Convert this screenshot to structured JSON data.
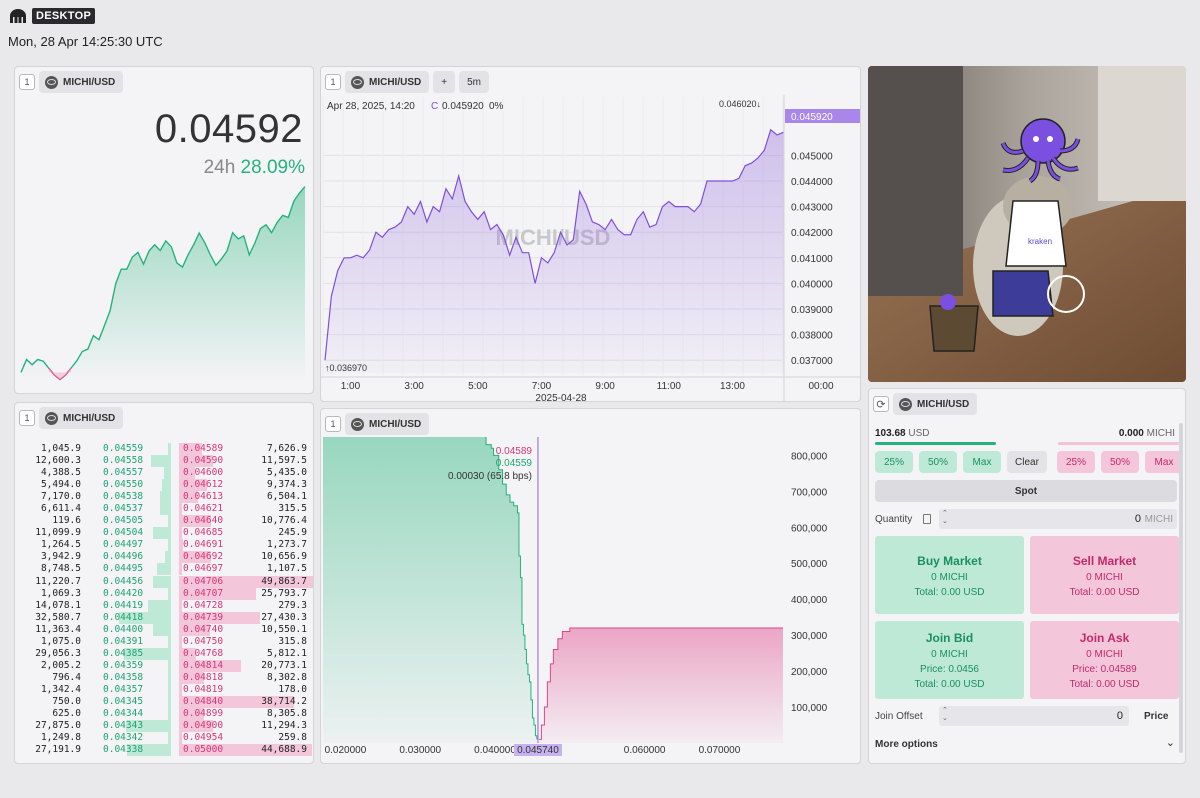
{
  "app": {
    "label": "DESKTOP",
    "clock": "Mon, 28 Apr 14:25:30 UTC"
  },
  "ticker": {
    "num": "1",
    "symbol": "MICHI/USD",
    "price": "0.04592",
    "change_label": "24h",
    "change_value": "28.09%",
    "spark": [
      0.03636,
      0.0368,
      0.03662,
      0.0368,
      0.03674,
      0.0365,
      0.03627,
      0.03612,
      0.03627,
      0.03651,
      0.03675,
      0.03707,
      0.03715,
      0.03761,
      0.03747,
      0.03796,
      0.03846,
      0.03937,
      0.03987,
      0.03987,
      0.04028,
      0.04044,
      0.04004,
      0.04049,
      0.0407,
      0.0405,
      0.04083,
      0.04063,
      0.04008,
      0.03994,
      0.04036,
      0.0407,
      0.0411,
      0.04077,
      0.04036,
      0.04,
      0.04022,
      0.04049,
      0.04111,
      0.0409,
      0.041,
      0.04036,
      0.04076,
      0.04125,
      0.04138,
      0.04111,
      0.04146,
      0.0417,
      0.04163,
      0.04218,
      0.04246,
      0.04268
    ]
  },
  "chart": {
    "num": "1",
    "symbol": "MICHI/USD",
    "add": "+",
    "interval": "5m",
    "date_label": "Apr 28, 2025, 14:20",
    "c_label": "C",
    "c_value": "0.045920",
    "c_pct": "0%",
    "high_label": "0.046020↓",
    "low_label": "↑0.036970",
    "watermark": "MICHI/USD",
    "last_tag": "0.045920",
    "date_under": "2025-04-28"
  },
  "chart_data": [
    {
      "type": "area",
      "title": "",
      "ylim": [
        0.0365,
        0.0465
      ],
      "yticks": [
        "0.037000",
        "0.038000",
        "0.039000",
        "0.040000",
        "0.041000",
        "0.042000",
        "0.043000",
        "0.044000",
        "0.045000"
      ],
      "xticks": [
        "1:00",
        "3:00",
        "5:00",
        "7:00",
        "9:00",
        "11:00",
        "13:00",
        "00:00"
      ],
      "x_hours": [
        0.0,
        0.2,
        0.4,
        0.6,
        0.8,
        1.0,
        1.2,
        1.4,
        1.6,
        1.8,
        2.0,
        2.2,
        2.4,
        2.6,
        2.8,
        3.0,
        3.2,
        3.4,
        3.6,
        3.8,
        4.0,
        4.2,
        4.4,
        4.6,
        4.8,
        5.0,
        5.2,
        5.4,
        5.6,
        5.8,
        6.0,
        6.2,
        6.4,
        6.6,
        6.8,
        7.0,
        7.2,
        7.4,
        7.6,
        7.8,
        8.0,
        8.2,
        8.4,
        8.6,
        8.8,
        9.0,
        9.2,
        9.4,
        9.6,
        9.8,
        10.0,
        10.2,
        10.4,
        10.6,
        10.8,
        11.0,
        11.2,
        11.4,
        11.6,
        11.8,
        12.0,
        12.2,
        12.4,
        12.6,
        12.8,
        13.0,
        13.2,
        13.4,
        13.6,
        13.8,
        14.0,
        14.2,
        14.4
      ],
      "values": [
        0.037,
        0.0395,
        0.0405,
        0.041,
        0.041,
        0.0411,
        0.041,
        0.0413,
        0.042,
        0.0418,
        0.0421,
        0.0422,
        0.0424,
        0.043,
        0.0427,
        0.0432,
        0.0424,
        0.043,
        0.0428,
        0.0437,
        0.0433,
        0.0442,
        0.0432,
        0.0428,
        0.0425,
        0.0428,
        0.0421,
        0.0423,
        0.0419,
        0.0411,
        0.0418,
        0.0412,
        0.0412,
        0.04,
        0.041,
        0.0408,
        0.0412,
        0.042,
        0.0415,
        0.0417,
        0.0436,
        0.0431,
        0.0424,
        0.0423,
        0.0421,
        0.0425,
        0.0421,
        0.0419,
        0.0419,
        0.0425,
        0.0428,
        0.0422,
        0.0423,
        0.043,
        0.0432,
        0.043,
        0.043,
        0.043,
        0.0428,
        0.0431,
        0.044,
        0.044,
        0.044,
        0.044,
        0.044,
        0.0441,
        0.0446,
        0.0447,
        0.0449,
        0.0452,
        0.046,
        0.0458,
        0.0459
      ]
    },
    {
      "type": "area",
      "title": "depth",
      "xlim": [
        0.017,
        0.0785
      ],
      "ylim": [
        0,
        840000
      ],
      "yticks": [
        "100,000",
        "200,000",
        "300,000",
        "400,000",
        "500,000",
        "600,000",
        "700,000",
        "800,000"
      ],
      "xticks": [
        "0.020000",
        "0.030000",
        "0.040000",
        "0.060000",
        "0.070000"
      ],
      "mid": "0.045740",
      "bids": [
        [
          0.017,
          860000
        ],
        [
          0.0385,
          860000
        ],
        [
          0.0388,
          830000
        ],
        [
          0.0395,
          820000
        ],
        [
          0.0398,
          800000
        ],
        [
          0.0405,
          760000
        ],
        [
          0.041,
          720000
        ],
        [
          0.0415,
          690000
        ],
        [
          0.042,
          670000
        ],
        [
          0.0425,
          660000
        ],
        [
          0.043,
          640000
        ],
        [
          0.0432,
          520000
        ],
        [
          0.0434,
          460000
        ],
        [
          0.0436,
          330000
        ],
        [
          0.0438,
          300000
        ],
        [
          0.044,
          260000
        ],
        [
          0.0442,
          220000
        ],
        [
          0.0444,
          190000
        ],
        [
          0.0446,
          170000
        ],
        [
          0.0448,
          120000
        ],
        [
          0.045,
          70000
        ],
        [
          0.0452,
          50000
        ],
        [
          0.0454,
          20000
        ],
        [
          0.04559,
          10000
        ]
      ],
      "asks": [
        [
          0.04589,
          10000
        ],
        [
          0.0462,
          50000
        ],
        [
          0.0466,
          100000
        ],
        [
          0.047,
          170000
        ],
        [
          0.0474,
          220000
        ],
        [
          0.0478,
          260000
        ],
        [
          0.0484,
          290000
        ],
        [
          0.049,
          310000
        ],
        [
          0.05,
          320000
        ],
        [
          0.0785,
          320000
        ]
      ]
    }
  ],
  "depth": {
    "num": "1",
    "symbol": "MICHI/USD",
    "ask_label": "0.04589",
    "bid_label": "0.04559",
    "spread_label": "0.00030 (65.8 bps)"
  },
  "orderbook": {
    "num": "1",
    "symbol": "MICHI/USD",
    "rows": [
      [
        "1,045.9",
        "0.04559",
        "0.04589",
        "7,626.9"
      ],
      [
        "12,600.3",
        "0.04558",
        "0.04590",
        "11,597.5"
      ],
      [
        "4,388.5",
        "0.04557",
        "0.04600",
        "5,435.0"
      ],
      [
        "5,494.0",
        "0.04550",
        "0.04612",
        "9,374.3"
      ],
      [
        "7,170.0",
        "0.04538",
        "0.04613",
        "6,504.1"
      ],
      [
        "6,611.4",
        "0.04537",
        "0.04621",
        "315.5"
      ],
      [
        "119.6",
        "0.04505",
        "0.04640",
        "10,776.4"
      ],
      [
        "11,099.9",
        "0.04504",
        "0.04685",
        "245.9"
      ],
      [
        "1,264.5",
        "0.04497",
        "0.04691",
        "1,273.7"
      ],
      [
        "3,942.9",
        "0.04496",
        "0.04692",
        "10,656.9"
      ],
      [
        "8,748.5",
        "0.04495",
        "0.04697",
        "1,107.5"
      ],
      [
        "11,220.7",
        "0.04456",
        "0.04706",
        "49,863.7"
      ],
      [
        "1,069.3",
        "0.04420",
        "0.04707",
        "25,793.7"
      ],
      [
        "14,078.1",
        "0.04419",
        "0.04728",
        "279.3"
      ],
      [
        "32,580.7",
        "0.04418",
        "0.04739",
        "27,430.3"
      ],
      [
        "11,363.4",
        "0.04400",
        "0.04740",
        "10,550.1"
      ],
      [
        "1,075.0",
        "0.04391",
        "0.04750",
        "315.8"
      ],
      [
        "29,056.3",
        "0.04385",
        "0.04768",
        "5,812.1"
      ],
      [
        "2,005.2",
        "0.04359",
        "0.04814",
        "20,773.1"
      ],
      [
        "796.4",
        "0.04358",
        "0.04818",
        "8,302.8"
      ],
      [
        "1,342.4",
        "0.04357",
        "0.04819",
        "178.0"
      ],
      [
        "750.0",
        "0.04345",
        "0.04840",
        "38,714.2"
      ],
      [
        "625.0",
        "0.04344",
        "0.04899",
        "8,305.8"
      ],
      [
        "27,875.0",
        "0.04343",
        "0.04900",
        "11,294.3"
      ],
      [
        "1,249.8",
        "0.04342",
        "0.04954",
        "259.8"
      ],
      [
        "27,191.9",
        "0.04338",
        "0.05000",
        "44,688.9"
      ]
    ]
  },
  "ticket": {
    "symbol": "MICHI/USD",
    "usd_balance": "103.68",
    "usd_unit": "USD",
    "michi_balance": "0.000",
    "michi_unit": "MICHI",
    "pct_buy": [
      "25%",
      "50%",
      "Max"
    ],
    "clear": "Clear",
    "pct_sell": [
      "25%",
      "50%",
      "Max"
    ],
    "spot": "Spot",
    "qty_label": "Quantity",
    "qty_value": "0",
    "qty_unit": "MICHI",
    "buy_market": {
      "title": "Buy Market",
      "qty": "0 MICHI",
      "total": "Total: 0.00 USD"
    },
    "sell_market": {
      "title": "Sell Market",
      "qty": "0 MICHI",
      "total": "Total: 0.00 USD"
    },
    "join_bid": {
      "title": "Join Bid",
      "qty": "0 MICHI",
      "price": "Price: 0.0456",
      "total": "Total: 0.00 USD"
    },
    "join_ask": {
      "title": "Join Ask",
      "qty": "0 MICHI",
      "price": "Price: 0.04589",
      "total": "Total: 0.00 USD"
    },
    "offset_label": "Join Offset",
    "offset_value": "0",
    "offset_unit": "Price",
    "more": "More options"
  },
  "colors": {
    "green": "#25b37b",
    "pink": "#d6377a",
    "purple": "#8b5fd9"
  },
  "icons": [
    "kraken-logo-icon",
    "coin-icon",
    "calculator-icon",
    "stepper-icon",
    "refresh-icon",
    "chevron-down-icon",
    "kraken-mascot-image"
  ]
}
